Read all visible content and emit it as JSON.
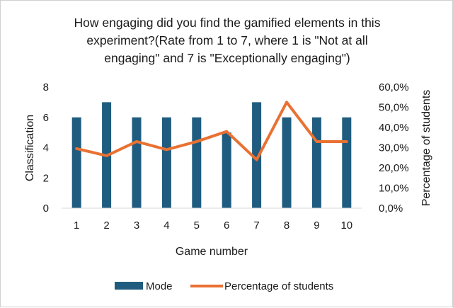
{
  "chart_data": {
    "type": "bar",
    "title_lines": [
      "How engaging did you find the gamified elements in this",
      "experiment?(Rate from 1 to 7, where 1 is \"Not at all",
      "engaging\" and 7 is \"Exceptionally engaging\")"
    ],
    "xlabel": "Game number",
    "ylabel": "Classification",
    "y2label": "Percentage of students",
    "categories": [
      "1",
      "2",
      "3",
      "4",
      "5",
      "6",
      "7",
      "8",
      "9",
      "10"
    ],
    "ylim": [
      0,
      8
    ],
    "yticks": [
      "0",
      "2",
      "4",
      "6",
      "8"
    ],
    "y2lim": [
      0,
      60
    ],
    "y2ticks": [
      "0,0%",
      "10,0%",
      "20,0%",
      "30,0%",
      "40,0%",
      "50,0%",
      "60,0%"
    ],
    "grid": false,
    "legend_position": "bottom",
    "series": [
      {
        "name": "Mode",
        "type": "bar",
        "axis": "left",
        "color": "#1f5c7f",
        "values": [
          6,
          7,
          6,
          6,
          6,
          5,
          7,
          6,
          6,
          6
        ]
      },
      {
        "name": "Percentage of students",
        "type": "line",
        "axis": "right",
        "color": "#e97132",
        "values": [
          29.5,
          26,
          33,
          29,
          33,
          38,
          24,
          52.5,
          33,
          33
        ]
      }
    ]
  }
}
